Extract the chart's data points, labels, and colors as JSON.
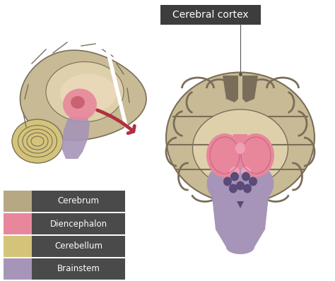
{
  "bg_color": "#ffffff",
  "label_box_color": "#3d3d3d",
  "label_text": "Cerebral cortex",
  "label_text_color": "#ffffff",
  "label_fontsize": 10,
  "legend_items": [
    {
      "label": "Cerebrum",
      "color": "#b5a882"
    },
    {
      "label": "Diencephalon",
      "color": "#e8879c"
    },
    {
      "label": "Cerebellum",
      "color": "#d4c47a"
    },
    {
      "label": "Brainstem",
      "color": "#a695b8"
    }
  ],
  "legend_bg": "#4a4a4a",
  "legend_text_color": "#ffffff",
  "legend_fontsize": 8.5,
  "cortex_outer_color": "#c8ba94",
  "cortex_sulci_color": "#7a6e5a",
  "cortex_light": "#ddd0aa",
  "diencephalon_color": "#e8879c",
  "brainstem_color": "#a695b8",
  "brainstem_dark_color": "#5a4a78",
  "cerebellum_color": "#d4c47a",
  "arrow_color": "#b03040",
  "divider_color": "#ffffff",
  "line_color": "#555555"
}
